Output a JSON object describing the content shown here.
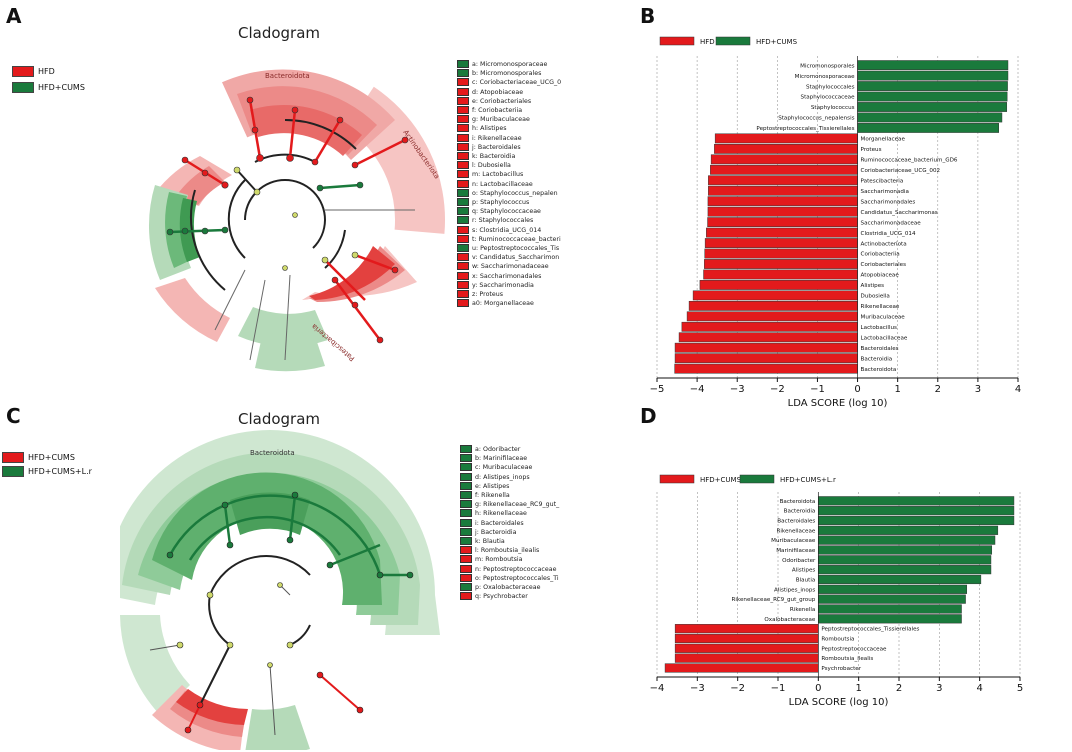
{
  "panels": {
    "a": "A",
    "b": "B",
    "c": "C",
    "d": "D"
  },
  "colors": {
    "red": "#e31a1c",
    "green": "#1a7a3c",
    "red_light": "#f4b6b4",
    "green_light": "#b5dab9"
  },
  "cladogram_a": {
    "title": "Cladogram",
    "legend": [
      {
        "label": "HFD",
        "color": "#e31a1c"
      },
      {
        "label": "HFD+CUMS",
        "color": "#1a7a3c"
      }
    ],
    "clade_labels": [
      "Bacteroidota",
      "Actinobacteriota",
      "Patescibacteria"
    ],
    "taxa": [
      {
        "label": "a: Micromonosporaceae",
        "color": "#1a7a3c"
      },
      {
        "label": "b: Micromonosporales",
        "color": "#1a7a3c"
      },
      {
        "label": "c: Coriobacteriaceae_UCG_0",
        "color": "#e31a1c"
      },
      {
        "label": "d: Atopobiaceae",
        "color": "#e31a1c"
      },
      {
        "label": "e: Coriobacteriales",
        "color": "#e31a1c"
      },
      {
        "label": "f: Coriobacteriia",
        "color": "#e31a1c"
      },
      {
        "label": "g: Muribaculaceae",
        "color": "#e31a1c"
      },
      {
        "label": "h: Alistipes",
        "color": "#e31a1c"
      },
      {
        "label": "i: Rikenellaceae",
        "color": "#e31a1c"
      },
      {
        "label": "j: Bacteroidales",
        "color": "#e31a1c"
      },
      {
        "label": "k: Bacteroidia",
        "color": "#e31a1c"
      },
      {
        "label": "l: Dubosiella",
        "color": "#e31a1c"
      },
      {
        "label": "m: Lactobacillus",
        "color": "#e31a1c"
      },
      {
        "label": "n: Lactobacillaceae",
        "color": "#e31a1c"
      },
      {
        "label": "o: Staphylococcus_nepalen",
        "color": "#1a7a3c"
      },
      {
        "label": "p: Staphylococcus",
        "color": "#1a7a3c"
      },
      {
        "label": "q: Staphylococcaceae",
        "color": "#1a7a3c"
      },
      {
        "label": "r: Staphylococcales",
        "color": "#1a7a3c"
      },
      {
        "label": "s: Clostridia_UCG_014",
        "color": "#e31a1c"
      },
      {
        "label": "t: Ruminococcaceae_bacteri",
        "color": "#e31a1c"
      },
      {
        "label": "u: Peptostreptococcales_Tis",
        "color": "#1a7a3c"
      },
      {
        "label": "v: Candidatus_Saccharimon",
        "color": "#e31a1c"
      },
      {
        "label": "w: Saccharimonadaceae",
        "color": "#e31a1c"
      },
      {
        "label": "x: Saccharimonadales",
        "color": "#e31a1c"
      },
      {
        "label": "y: Saccharimonadia",
        "color": "#e31a1c"
      },
      {
        "label": "z: Proteus",
        "color": "#e31a1c"
      },
      {
        "label": "a0: Morganellaceae",
        "color": "#e31a1c"
      }
    ]
  },
  "cladogram_c": {
    "title": "Cladogram",
    "legend": [
      {
        "label": "HFD+CUMS",
        "color": "#e31a1c"
      },
      {
        "label": "HFD+CUMS+L.r",
        "color": "#1a7a3c"
      }
    ],
    "clade_labels": [
      "Bacteroidota"
    ],
    "taxa": [
      {
        "label": "a: Odoribacter",
        "color": "#1a7a3c"
      },
      {
        "label": "b: Marinifilaceae",
        "color": "#1a7a3c"
      },
      {
        "label": "c: Muribaculaceae",
        "color": "#1a7a3c"
      },
      {
        "label": "d: Alistipes_inops",
        "color": "#1a7a3c"
      },
      {
        "label": "e: Alistipes",
        "color": "#1a7a3c"
      },
      {
        "label": "f: Rikenella",
        "color": "#1a7a3c"
      },
      {
        "label": "g: Rikenellaceae_RC9_gut_",
        "color": "#1a7a3c"
      },
      {
        "label": "h: Rikenellaceae",
        "color": "#1a7a3c"
      },
      {
        "label": "i: Bacteroidales",
        "color": "#1a7a3c"
      },
      {
        "label": "j: Bacteroidia",
        "color": "#1a7a3c"
      },
      {
        "label": "k: Blautia",
        "color": "#1a7a3c"
      },
      {
        "label": "l: Romboutsia_ilealis",
        "color": "#e31a1c"
      },
      {
        "label": "m: Romboutsia",
        "color": "#e31a1c"
      },
      {
        "label": "n: Peptostreptococcaceae",
        "color": "#e31a1c"
      },
      {
        "label": "o: Peptostreptococcales_Ti",
        "color": "#e31a1c"
      },
      {
        "label": "p: Oxalobacteraceae",
        "color": "#1a7a3c"
      },
      {
        "label": "q: Psychrobacter",
        "color": "#e31a1c"
      }
    ]
  },
  "chart_data": [
    {
      "type": "bar",
      "orientation": "horizontal",
      "panel": "B",
      "xlabel": "LDA SCORE (log 10)",
      "xlim": [
        -5,
        4
      ],
      "xticks": [
        -5,
        -4,
        -3,
        -2,
        -1,
        0,
        1,
        2,
        3,
        4
      ],
      "legend": [
        {
          "name": "HFD",
          "color": "#e31a1c"
        },
        {
          "name": "HFD+CUMS",
          "color": "#1a7a3c"
        }
      ],
      "categories": [
        "Micromonosporales",
        "Micromonosporaceae",
        "Staphylococcales",
        "Staphylococcaceae",
        "Staphylococcus",
        "Staphylococcus_nepalensis",
        "Peptostreptococcales_Tissierellales",
        "Morganellaceae",
        "Proteus",
        "Ruminococcaceae_bacterium_GD6",
        "Coriobacteriaceae_UCG_002",
        "Patescibacteria",
        "Saccharimonadia",
        "Saccharimonadales",
        "Candidatus_Saccharimonas",
        "Saccharimonadaceae",
        "Clostridia_UCG_014",
        "Actinobacteriota",
        "Coriobacteriia",
        "Coriobacteriales",
        "Atopobiaceae",
        "Alistipes",
        "Dubosiella",
        "Rikenellaceae",
        "Muribaculaceae",
        "Lactobacillus",
        "Lactobacillaceae",
        "Bacteroidales",
        "Bacteroidia",
        "Bacteroidota"
      ],
      "values": [
        3.75,
        3.75,
        3.74,
        3.73,
        3.72,
        3.6,
        3.52,
        -3.55,
        -3.57,
        -3.65,
        -3.67,
        -3.72,
        -3.72,
        -3.73,
        -3.73,
        -3.74,
        -3.77,
        -3.8,
        -3.81,
        -3.82,
        -3.84,
        -3.93,
        -4.1,
        -4.2,
        -4.25,
        -4.38,
        -4.45,
        -4.55,
        -4.55,
        -4.56
      ],
      "groups": [
        "HFD+CUMS",
        "HFD+CUMS",
        "HFD+CUMS",
        "HFD+CUMS",
        "HFD+CUMS",
        "HFD+CUMS",
        "HFD+CUMS",
        "HFD",
        "HFD",
        "HFD",
        "HFD",
        "HFD",
        "HFD",
        "HFD",
        "HFD",
        "HFD",
        "HFD",
        "HFD",
        "HFD",
        "HFD",
        "HFD",
        "HFD",
        "HFD",
        "HFD",
        "HFD",
        "HFD",
        "HFD",
        "HFD",
        "HFD",
        "HFD"
      ]
    },
    {
      "type": "bar",
      "orientation": "horizontal",
      "panel": "D",
      "xlabel": "LDA SCORE (log 10)",
      "xlim": [
        -4,
        5
      ],
      "xticks": [
        -4,
        -3,
        -2,
        -1,
        0,
        1,
        2,
        3,
        4,
        5
      ],
      "legend": [
        {
          "name": "HFD+CUMS",
          "color": "#e31a1c"
        },
        {
          "name": "HFD+CUMS+L.r",
          "color": "#1a7a3c"
        }
      ],
      "categories": [
        "Bacteroidota",
        "Bacteroidia",
        "Bacteroidales",
        "Rikenellaceae",
        "Muribaculaceae",
        "Marinifilaceae",
        "Odoribacter",
        "Alistipes",
        "Blautia",
        "Alistipes_inops",
        "Rikenellaceae_RC9_gut_group",
        "Rikenella",
        "Oxalobacteraceae",
        "Peptostreptococcales_Tissierellales",
        "Romboutsia",
        "Peptostreptococcaceae",
        "Romboutsia_ilealis",
        "Psychrobacter"
      ],
      "values": [
        4.85,
        4.85,
        4.85,
        4.45,
        4.38,
        4.3,
        4.28,
        4.28,
        4.03,
        3.68,
        3.65,
        3.55,
        3.55,
        -3.55,
        -3.55,
        -3.55,
        -3.55,
        -3.8
      ],
      "groups": [
        "HFD+CUMS+L.r",
        "HFD+CUMS+L.r",
        "HFD+CUMS+L.r",
        "HFD+CUMS+L.r",
        "HFD+CUMS+L.r",
        "HFD+CUMS+L.r",
        "HFD+CUMS+L.r",
        "HFD+CUMS+L.r",
        "HFD+CUMS+L.r",
        "HFD+CUMS+L.r",
        "HFD+CUMS+L.r",
        "HFD+CUMS+L.r",
        "HFD+CUMS+L.r",
        "HFD+CUMS",
        "HFD+CUMS",
        "HFD+CUMS",
        "HFD+CUMS",
        "HFD+CUMS"
      ]
    }
  ]
}
